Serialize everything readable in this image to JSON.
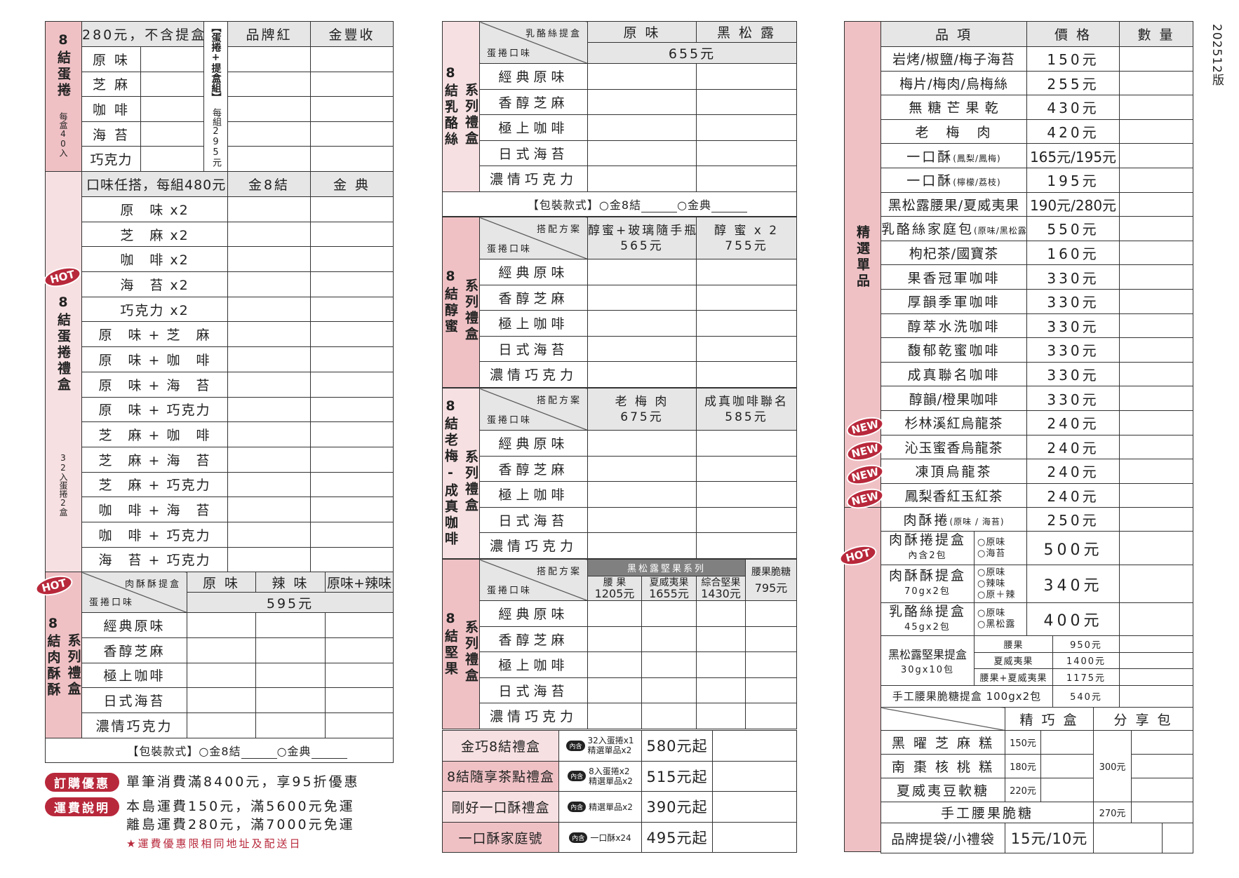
{
  "version": "202512版",
  "colors": {
    "accent": "#b8283b",
    "label_pink": "#efc1c5",
    "label_light": "#f7e0e2",
    "header_gray": "#e6e6e6"
  },
  "eggroll": {
    "label": "8結蛋捲",
    "sub": "每盒40入",
    "price_header": "280元，不含提盒",
    "set_label": "【蛋捲+提盒組】",
    "set_price": "每組295元",
    "boxes": [
      "品牌紅",
      "金豐收"
    ],
    "flavors": [
      "原 味",
      "芝 麻",
      "咖 啡",
      "海 苔",
      "巧克力"
    ]
  },
  "giftbox": {
    "label": "8結蛋捲禮盒",
    "sub": "32入蛋捲2盒",
    "header": "口味任搭，每組480元",
    "boxes": [
      "金8結",
      "金 典"
    ],
    "combos": [
      "原　味 x2",
      "芝　麻 x2",
      "咖　啡 x2",
      "海　苔 x2",
      "巧克力 x2",
      "原　味 + 芝　麻",
      "原　味 + 咖　啡",
      "原　味 + 海　苔",
      "原　味 + 巧克力",
      "芝　麻 + 咖　啡",
      "芝　麻 + 海　苔",
      "芝　麻 + 巧克力",
      "咖　啡 + 海　苔",
      "咖　啡 + 巧克力",
      "海　苔 + 巧克力"
    ]
  },
  "meatfloss": {
    "label_a": "8結肉酥酥",
    "label_b": "系列禮盒",
    "corner_top": "肉酥酥提盒",
    "corner_bottom": "蛋捲口味",
    "options": [
      "原 味",
      "辣 味",
      "原味+辣味"
    ],
    "price": "595元",
    "flavors": [
      "經典原味",
      "香醇芝麻",
      "極上咖啡",
      "日式海苔",
      "濃情巧克力"
    ]
  },
  "packaging": {
    "label": "【包裝款式】○金8結",
    "opt2": "○金典"
  },
  "promo": {
    "order_tag": "訂購優惠",
    "order_text": "單筆消費滿8400元，享95折優惠",
    "ship_tag": "運費說明",
    "ship_line1": "本島運費150元，滿5600元免運",
    "ship_line2": "離島運費280元，滿7000元免運",
    "ship_note": "★運費優惠限相同地址及配送日"
  },
  "series": [
    {
      "label_a": "8結乳酪絲",
      "label_b": "系列禮盒",
      "corner_top": "乳酪絲提盒",
      "corner_bottom": "蛋捲口味",
      "options": [
        {
          "name": "原 味"
        },
        {
          "name": "黑 松 露"
        }
      ],
      "shared_price": "655元",
      "flavors": [
        "經典原味",
        "香醇芝麻",
        "極上咖啡",
        "日式海苔",
        "濃情巧克力"
      ]
    },
    {
      "label_a": "8結醇蜜",
      "label_b": "系列禮盒",
      "corner_top": "搭配方案",
      "corner_bottom": "蛋捲口味",
      "options": [
        {
          "name": "醇蜜+玻璃隨手瓶",
          "price": "565元"
        },
        {
          "name": "醇 蜜 x 2",
          "price": "755元"
        }
      ],
      "flavors": [
        "經典原味",
        "香醇芝麻",
        "極上咖啡",
        "日式海苔",
        "濃情巧克力"
      ]
    },
    {
      "label_a": "8結老梅-成真咖啡",
      "label_b": "系列禮盒",
      "corner_top": "搭配方案",
      "corner_bottom": "蛋捲口味",
      "options": [
        {
          "name": "老 梅 肉",
          "price": "675元"
        },
        {
          "name": "成真咖啡聯名",
          "price": "585元"
        }
      ],
      "flavors": [
        "經典原味",
        "香醇芝麻",
        "極上咖啡",
        "日式海苔",
        "濃情巧克力"
      ]
    },
    {
      "label_a": "8結堅果",
      "label_b": "系列禮盒",
      "corner_top": "搭配方案",
      "corner_bottom": "蛋捲口味",
      "group": "黑松露堅果系列",
      "options": [
        {
          "name": "腰 果",
          "price": "1205元"
        },
        {
          "name": "夏威夷果",
          "price": "1655元"
        },
        {
          "name": "綜合堅果",
          "price": "1430元"
        },
        {
          "name": "腰果脆糖",
          "price": "795元"
        }
      ],
      "flavors": [
        "經典原味",
        "香醇芝麻",
        "極上咖啡",
        "日式海苔",
        "濃情巧克力"
      ]
    }
  ],
  "gifts": [
    {
      "name": "金巧8結禮盒",
      "tag": "內含",
      "contents": [
        "32入蛋捲x1",
        "精選單品x2"
      ],
      "price": "580元起"
    },
    {
      "name": "8結隨享茶點禮盒",
      "tag": "內含",
      "contents": [
        "8入蛋捲x2",
        "精選單品x2"
      ],
      "price": "515元起"
    },
    {
      "name": "剛好一口酥禮盒",
      "tag": "內含",
      "contents": [
        "精選單品x2"
      ],
      "price": "390元起"
    },
    {
      "name": "一口酥家庭號",
      "tag": "內含",
      "contents": [
        "一口酥x24"
      ],
      "price": "495元起"
    }
  ],
  "singles": {
    "label": "精選單品",
    "headers": [
      "品 項",
      "價 格",
      "數 量"
    ],
    "items": [
      {
        "name": "岩烤/椒鹽/梅子海苔",
        "price": "150元"
      },
      {
        "name": "梅片/梅肉/烏梅絲",
        "price": "255元"
      },
      {
        "name": "無 糖 芒 果 乾",
        "price": "430元"
      },
      {
        "name": "老　梅　肉",
        "price": "420元"
      },
      {
        "name": "一口酥",
        "note": "(鳳梨/鳳梅)",
        "price": "165元/195元"
      },
      {
        "name": "一口酥",
        "note": "(檸檬/荔枝)",
        "price": "195元"
      },
      {
        "name": "黑松露腰果/夏威夷果",
        "price": "190元/280元"
      },
      {
        "name": "乳酪絲家庭包",
        "note": "(原味/黑松露)",
        "price": "550元"
      },
      {
        "name": "枸杞茶/國寶茶",
        "price": "160元"
      },
      {
        "name": "果香冠軍咖啡",
        "price": "330元"
      },
      {
        "name": "厚韻季軍咖啡",
        "price": "330元"
      },
      {
        "name": "醇萃水洗咖啡",
        "price": "330元"
      },
      {
        "name": "馥郁乾蜜咖啡",
        "price": "330元"
      },
      {
        "name": "成真聯名咖啡",
        "price": "330元"
      },
      {
        "name": "醇韻/橙果咖啡",
        "price": "330元"
      },
      {
        "name": "杉林溪紅烏龍茶",
        "price": "240元",
        "badge": "NEW"
      },
      {
        "name": "沁玉蜜香烏龍茶",
        "price": "240元",
        "badge": "NEW"
      },
      {
        "name": "凍頂烏龍茶",
        "price": "240元",
        "badge": "NEW"
      },
      {
        "name": "鳳梨香紅玉紅茶",
        "price": "240元",
        "badge": "NEW"
      }
    ],
    "roll": {
      "name": "肉酥捲",
      "note": "(原味 / 海苔)",
      "price": "250元"
    },
    "boxes": [
      {
        "name": "肉酥捲提盒",
        "sub": "內含2包",
        "opts": [
          "○原味",
          "○海苔"
        ],
        "price": "500元"
      },
      {
        "name": "肉酥酥提盒",
        "sub": "70gx2包",
        "opts": [
          "○原味",
          "○辣味",
          "○原＋辣"
        ],
        "price": "340元"
      },
      {
        "name": "乳酪絲提盒",
        "sub": "45gx2包",
        "opts": [
          "○原味",
          "○黑松露"
        ],
        "price": "400元"
      }
    ],
    "nutbox": {
      "name": "黑松露堅果提盒",
      "sub": "30gx10包",
      "variants": [
        {
          "name": "腰果",
          "price": "950元"
        },
        {
          "name": "夏威夷果",
          "price": "1400元"
        },
        {
          "name": "腰果+夏威夷果",
          "price": "1175元"
        }
      ]
    },
    "brittle_box": {
      "name": "手工腰果脆糖提盒 100gx2包",
      "price": "540元"
    },
    "sweets": {
      "headers": [
        "精 巧 盒",
        "分 享 包"
      ],
      "items": [
        {
          "name": "黑 曜 芝 麻 糕",
          "price": "150元"
        },
        {
          "name": "南 棗 核 桃 糕",
          "price": "180元"
        },
        {
          "name": "夏威夷豆軟糖",
          "price": "220元"
        }
      ],
      "share_price": "300元",
      "brittle": {
        "name": "手工腰果脆糖",
        "price": "270元"
      },
      "bags": {
        "name": "品牌提袋/小禮袋",
        "price": "15元/10元"
      }
    }
  },
  "badges": {
    "hot": "HOT",
    "new": "NEW"
  }
}
